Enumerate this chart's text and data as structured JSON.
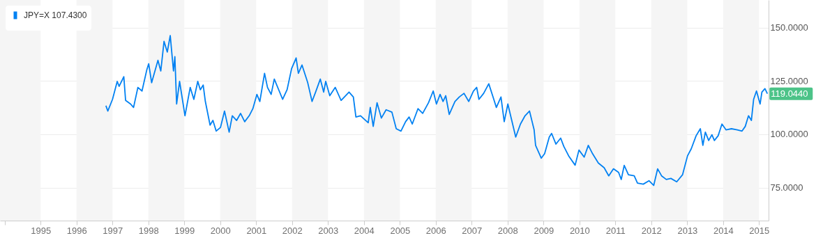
{
  "chart_data": {
    "type": "line",
    "x": [
      "1996-10-26",
      "1996-11-14",
      "1997-01-01",
      "1997-02-18",
      "1997-03-09",
      "1997-04-26",
      "1997-05-14",
      "1997-07-04",
      "1997-08-03",
      "1997-09-16",
      "1997-10-28",
      "1997-12-16",
      "1998-01-04",
      "1998-02-03",
      "1998-04-08",
      "1998-05-07",
      "1998-06-09",
      "1998-07-12",
      "1998-08-11",
      "1998-09-13",
      "1998-09-27",
      "1998-10-15",
      "1998-11-14",
      "1999-01-08",
      "1999-03-02",
      "1999-04-08",
      "1999-05-18",
      "1999-06-13",
      "1999-07-12",
      "1999-08-03",
      "1999-09-20",
      "1999-10-19",
      "1999-11-21",
      "2000-01-04",
      "2000-02-14",
      "2000-04-01",
      "2000-05-03",
      "2000-06-16",
      "2000-07-26",
      "2000-09-06",
      "2000-10-22",
      "2000-11-28",
      "2001-01-08",
      "2001-02-07",
      "2001-03-27",
      "2001-04-26",
      "2001-06-02",
      "2001-07-04",
      "2001-09-27",
      "2001-11-11",
      "2001-12-27",
      "2002-02-11",
      "2002-03-06",
      "2002-04-12",
      "2002-06-09",
      "2002-07-23",
      "2002-08-28",
      "2002-10-15",
      "2002-11-18",
      "2002-12-09",
      "2003-01-19",
      "2003-03-16",
      "2003-05-14",
      "2003-08-03",
      "2003-09-16",
      "2003-10-12",
      "2003-11-28",
      "2004-02-14",
      "2004-03-06",
      "2004-04-05",
      "2004-05-14",
      "2004-06-27",
      "2004-08-14",
      "2004-10-12",
      "2004-11-25",
      "2005-01-12",
      "2005-02-28",
      "2005-04-05",
      "2005-05-07",
      "2005-07-04",
      "2005-08-21",
      "2005-10-19",
      "2005-12-06",
      "2006-01-08",
      "2006-02-14",
      "2006-03-16",
      "2006-04-12",
      "2006-05-18",
      "2006-07-15",
      "2006-08-28",
      "2006-10-15",
      "2006-12-02",
      "2007-01-19",
      "2007-02-21",
      "2007-03-16",
      "2007-05-03",
      "2007-06-24",
      "2007-08-14",
      "2007-09-09",
      "2007-10-26",
      "2007-11-28",
      "2008-01-04",
      "2008-02-07",
      "2008-03-24",
      "2008-05-11",
      "2008-06-27",
      "2008-08-11",
      "2008-09-27",
      "2008-10-12",
      "2008-12-09",
      "2009-01-12",
      "2009-02-28",
      "2009-03-24",
      "2009-05-07",
      "2009-06-24",
      "2009-07-26",
      "2009-09-13",
      "2009-11-18",
      "2009-12-27",
      "2010-02-18",
      "2010-04-01",
      "2010-05-14",
      "2010-07-12",
      "2010-09-09",
      "2010-10-26",
      "2010-12-13",
      "2011-02-03",
      "2011-03-02",
      "2011-04-01",
      "2011-05-14",
      "2011-07-12",
      "2011-08-14",
      "2011-10-12",
      "2011-12-09",
      "2012-01-26",
      "2012-03-06",
      "2012-04-15",
      "2012-06-02",
      "2012-07-19",
      "2012-09-16",
      "2012-11-14",
      "2013-01-04",
      "2013-02-11",
      "2013-04-01",
      "2013-05-14",
      "2013-06-09",
      "2013-07-04",
      "2013-08-07",
      "2013-09-09",
      "2013-10-04",
      "2013-11-11",
      "2013-12-20",
      "2014-01-30",
      "2014-03-27",
      "2014-05-25",
      "2014-07-12",
      "2014-08-14",
      "2014-09-16",
      "2014-10-15",
      "2014-11-07",
      "2014-12-06",
      "2015-01-12",
      "2015-01-30",
      "2015-03-02",
      "2015-03-27"
    ],
    "series": [
      {
        "name": "JPY=X 107.4300",
        "color": "#0081f2",
        "values": [
          113.4,
          110.9,
          116.4,
          124.8,
          122.5,
          127.0,
          115.9,
          114.2,
          112.6,
          122.0,
          120.3,
          130.3,
          133.1,
          124.2,
          134.7,
          129.7,
          143.6,
          138.6,
          146.3,
          129.7,
          136.4,
          114.2,
          124.8,
          108.7,
          122.0,
          116.4,
          124.8,
          120.9,
          123.1,
          115.4,
          104.3,
          106.5,
          101.5,
          103.2,
          110.9,
          101.0,
          108.7,
          106.5,
          109.8,
          105.9,
          108.7,
          112.0,
          118.7,
          115.4,
          128.6,
          122.0,
          118.7,
          125.9,
          116.4,
          120.9,
          130.8,
          135.8,
          128.6,
          132.5,
          124.2,
          115.4,
          119.8,
          125.9,
          119.8,
          124.8,
          118.1,
          122.0,
          115.9,
          119.8,
          117.5,
          108.1,
          108.7,
          105.4,
          112.6,
          103.7,
          114.8,
          107.6,
          111.5,
          110.4,
          102.6,
          101.5,
          105.9,
          108.1,
          104.8,
          112.0,
          109.8,
          114.8,
          120.3,
          114.2,
          118.7,
          115.4,
          118.1,
          109.3,
          115.4,
          117.5,
          119.2,
          115.4,
          120.3,
          122.0,
          116.4,
          119.2,
          123.7,
          116.4,
          112.6,
          117.5,
          105.9,
          114.2,
          107.6,
          98.7,
          104.8,
          108.7,
          110.9,
          102.1,
          94.8,
          88.8,
          90.9,
          98.7,
          100.4,
          95.4,
          98.2,
          94.3,
          89.9,
          85.5,
          92.6,
          89.3,
          94.8,
          90.9,
          86.5,
          84.3,
          80.5,
          83.8,
          82.1,
          78.8,
          85.4,
          81.0,
          80.5,
          77.1,
          76.6,
          78.2,
          76.0,
          83.8,
          80.5,
          78.8,
          79.3,
          77.7,
          81.0,
          89.9,
          93.2,
          99.3,
          102.6,
          94.8,
          101.0,
          97.1,
          99.8,
          97.1,
          99.3,
          104.8,
          102.1,
          102.6,
          102.1,
          101.5,
          103.7,
          108.7,
          106.5,
          116.4,
          120.3,
          114.2,
          119.8,
          121.4,
          119.044
        ]
      }
    ],
    "xlim": [
      "1993-11-14",
      "2015-04-08"
    ],
    "xticks": [
      {
        "value": "1994",
        "label": null
      },
      {
        "value": "1995",
        "label": "1995"
      },
      {
        "value": "1996",
        "label": "1996"
      },
      {
        "value": "1997",
        "label": "1997"
      },
      {
        "value": "1998",
        "label": "1998"
      },
      {
        "value": "1999",
        "label": "1999"
      },
      {
        "value": "2000",
        "label": "2000"
      },
      {
        "value": "2001",
        "label": "2001"
      },
      {
        "value": "2002",
        "label": "2002"
      },
      {
        "value": "2003",
        "label": "2003"
      },
      {
        "value": "2004",
        "label": "2004"
      },
      {
        "value": "2005",
        "label": "2005"
      },
      {
        "value": "2006",
        "label": "2006"
      },
      {
        "value": "2007",
        "label": "2007"
      },
      {
        "value": "2008",
        "label": "2008"
      },
      {
        "value": "2009",
        "label": "2009"
      },
      {
        "value": "2010",
        "label": "2010"
      },
      {
        "value": "2011",
        "label": "2011"
      },
      {
        "value": "2012",
        "label": "2012"
      },
      {
        "value": "2013",
        "label": "2013"
      },
      {
        "value": "2014",
        "label": "2014"
      },
      {
        "value": "2015",
        "label": "2015"
      }
    ],
    "ylim": [
      59.5,
      163
    ],
    "yticks": [
      {
        "value": 75,
        "label": "75.0000"
      },
      {
        "value": 100,
        "label": "100.0000"
      },
      {
        "value": 125,
        "label": "125.0000"
      },
      {
        "value": 150,
        "label": "150.0000"
      }
    ],
    "grid": "y",
    "legend": "top left",
    "line_style": "solid",
    "annotations": [
      {
        "text": "119.0440",
        "x": "2015-03-27",
        "y": 119.044
      }
    ],
    "bands": [
      {
        "axis": "x",
        "from": "1993-11-14",
        "to": "1995",
        "color": "#f5f5f5"
      },
      {
        "axis": "x",
        "from": "1996",
        "to": "1997",
        "color": "#f5f5f5"
      },
      {
        "axis": "x",
        "from": "1998",
        "to": "1999",
        "color": "#f5f5f5"
      },
      {
        "axis": "x",
        "from": "2000",
        "to": "2001",
        "color": "#f5f5f5"
      },
      {
        "axis": "x",
        "from": "2002",
        "to": "2003",
        "color": "#f5f5f5"
      },
      {
        "axis": "x",
        "from": "2004",
        "to": "2005",
        "color": "#f5f5f5"
      },
      {
        "axis": "x",
        "from": "2006",
        "to": "2007",
        "color": "#f5f5f5"
      },
      {
        "axis": "x",
        "from": "2008",
        "to": "2009",
        "color": "#f5f5f5"
      },
      {
        "axis": "x",
        "from": "2010",
        "to": "2011",
        "color": "#f5f5f5"
      },
      {
        "axis": "x",
        "from": "2012",
        "to": "2013",
        "color": "#f5f5f5"
      },
      {
        "axis": "x",
        "from": "2014",
        "to": "2015",
        "color": "#f5f5f5"
      }
    ]
  }
}
